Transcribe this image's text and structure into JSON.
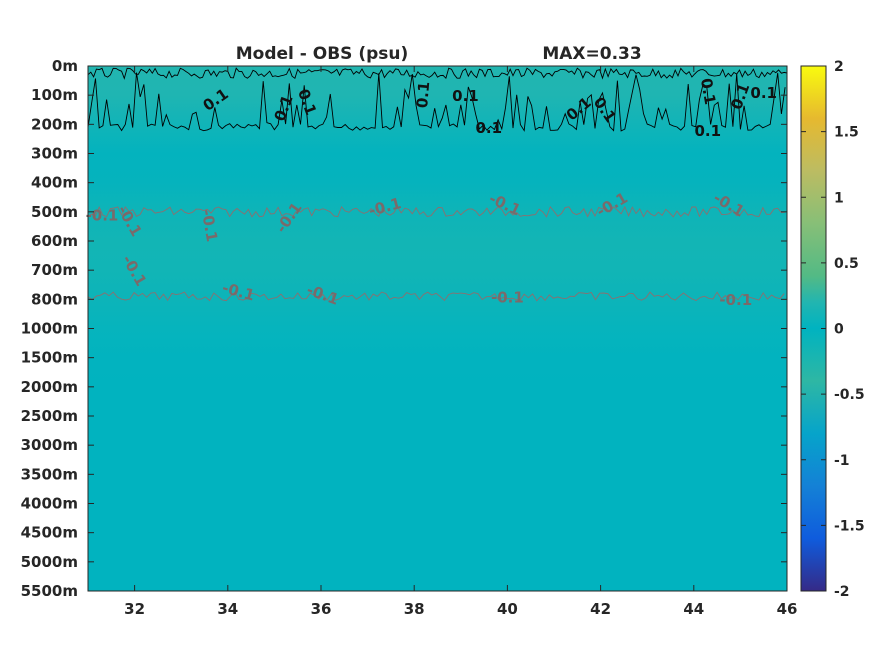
{
  "chart_data": {
    "type": "heatmap",
    "title": "Model - OBS (psu)",
    "max_label": "MAX=0.33",
    "xlabel": "",
    "ylabel": "",
    "x_ticks": [
      "32",
      "34",
      "36",
      "38",
      "40",
      "42",
      "44",
      "46"
    ],
    "x_range": [
      31,
      46
    ],
    "y_levels": [
      "0m",
      "100m",
      "200m",
      "300m",
      "400m",
      "500m",
      "600m",
      "700m",
      "800m",
      "1000m",
      "1500m",
      "2000m",
      "2500m",
      "3000m",
      "3500m",
      "4000m",
      "4500m",
      "5000m",
      "5500m"
    ],
    "colorbar": {
      "range": [
        -2,
        2
      ],
      "ticks": [
        "2",
        "1.5",
        "1",
        "0.5",
        "0",
        "-0.5",
        "-1",
        "-1.5",
        "-2"
      ],
      "colormap": "parula"
    },
    "layers": [
      {
        "depth": "0m",
        "value": 0.2
      },
      {
        "depth": "100m",
        "value": 0.18
      },
      {
        "depth": "200m",
        "value": 0.1
      },
      {
        "depth": "300m",
        "value": 0.02
      },
      {
        "depth": "400m",
        "value": -0.04
      },
      {
        "depth": "500m",
        "value": -0.12
      },
      {
        "depth": "600m",
        "value": -0.16
      },
      {
        "depth": "700m",
        "value": -0.15
      },
      {
        "depth": "800m",
        "value": -0.1
      },
      {
        "depth": "1000m",
        "value": -0.05
      },
      {
        "depth": "1500m",
        "value": -0.02
      },
      {
        "depth": "2000m",
        "value": -0.01
      },
      {
        "depth": "2500m",
        "value": -0.01
      },
      {
        "depth": "3000m",
        "value": -0.01
      },
      {
        "depth": "3500m",
        "value": -0.01
      },
      {
        "depth": "4000m",
        "value": -0.01
      },
      {
        "depth": "4500m",
        "value": -0.01
      },
      {
        "depth": "5000m",
        "value": -0.01
      },
      {
        "depth": "5500m",
        "value": -0.01
      }
    ],
    "contours": [
      {
        "level": 0.1,
        "label": "0.1",
        "color": "#000000"
      },
      {
        "level": -0.1,
        "label": "-0.1",
        "color": "#8a7070"
      }
    ],
    "contour_labels": [
      {
        "text": "0.1",
        "level": "pos",
        "x": 33.8,
        "depth_idx": 1.3,
        "rot": -35
      },
      {
        "text": "0.1",
        "level": "pos",
        "x": 35.3,
        "depth_idx": 1.5,
        "rot": -70
      },
      {
        "text": "0.1",
        "level": "pos",
        "x": 35.6,
        "depth_idx": 1.3,
        "rot": 70
      },
      {
        "text": "0.1",
        "level": "pos",
        "x": 38.3,
        "depth_idx": 1.0,
        "rot": -85
      },
      {
        "text": "0.1",
        "level": "pos",
        "x": 39.1,
        "depth_idx": 1.2,
        "rot": 0
      },
      {
        "text": "0.1",
        "level": "pos",
        "x": 39.6,
        "depth_idx": 2.3,
        "rot": 0
      },
      {
        "text": "0.1",
        "level": "pos",
        "x": 41.6,
        "depth_idx": 1.6,
        "rot": -40
      },
      {
        "text": "0.1",
        "level": "pos",
        "x": 42.0,
        "depth_idx": 1.6,
        "rot": 55
      },
      {
        "text": "0.1",
        "level": "pos",
        "x": 44.3,
        "depth_idx": 2.4,
        "rot": 0
      },
      {
        "text": "0.1",
        "level": "pos",
        "x": 44.2,
        "depth_idx": 0.9,
        "rot": 80
      },
      {
        "text": "0.1",
        "level": "pos",
        "x": 45.1,
        "depth_idx": 1.1,
        "rot": -70
      },
      {
        "text": "0.1",
        "level": "pos",
        "x": 45.5,
        "depth_idx": 1.1,
        "rot": 0
      },
      {
        "text": "-0.1",
        "level": "neg",
        "x": 31.3,
        "depth_idx": 5.3,
        "rot": 0
      },
      {
        "text": "-0.1",
        "level": "neg",
        "x": 31.8,
        "depth_idx": 5.4,
        "rot": 60
      },
      {
        "text": "-0.1",
        "level": "neg",
        "x": 31.9,
        "depth_idx": 7.1,
        "rot": 60
      },
      {
        "text": "-0.1",
        "level": "neg",
        "x": 33.5,
        "depth_idx": 5.5,
        "rot": 80
      },
      {
        "text": "-0.1",
        "level": "neg",
        "x": 35.4,
        "depth_idx": 5.3,
        "rot": -55
      },
      {
        "text": "-0.1",
        "level": "neg",
        "x": 37.4,
        "depth_idx": 5.0,
        "rot": -15
      },
      {
        "text": "-0.1",
        "level": "neg",
        "x": 39.9,
        "depth_idx": 4.9,
        "rot": 25
      },
      {
        "text": "-0.1",
        "level": "neg",
        "x": 42.3,
        "depth_idx": 4.9,
        "rot": -30
      },
      {
        "text": "-0.1",
        "level": "neg",
        "x": 44.7,
        "depth_idx": 4.9,
        "rot": 30
      },
      {
        "text": "-0.1",
        "level": "neg",
        "x": 34.2,
        "depth_idx": 7.9,
        "rot": 15
      },
      {
        "text": "-0.1",
        "level": "neg",
        "x": 36.0,
        "depth_idx": 8.0,
        "rot": 20
      },
      {
        "text": "-0.1",
        "level": "neg",
        "x": 40.0,
        "depth_idx": 8.1,
        "rot": 0
      },
      {
        "text": "-0.1",
        "level": "neg",
        "x": 44.9,
        "depth_idx": 8.2,
        "rot": 0
      }
    ]
  }
}
